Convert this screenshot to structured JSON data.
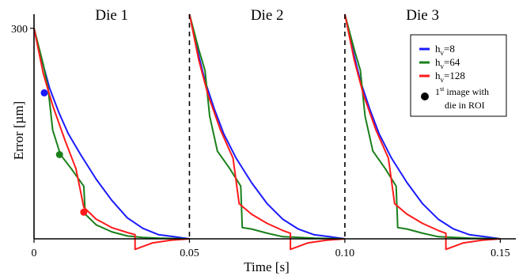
{
  "chart_data": {
    "type": "line",
    "xlabel": "Time [s]",
    "ylabel": "Error [µm]",
    "xlim": [
      0,
      0.155
    ],
    "ylim": [
      0,
      320
    ],
    "x_ticks": [
      {
        "value": 0,
        "label": "0"
      },
      {
        "value": 0.05,
        "label": "0.05"
      },
      {
        "value": 0.1,
        "label": "0.10"
      },
      {
        "value": 0.15,
        "label": "0.15"
      }
    ],
    "y_ticks": [
      {
        "value": 300,
        "label": "300"
      }
    ],
    "grid": false,
    "dividers": [
      0.05,
      0.1
    ],
    "panels": [
      {
        "label": "Die 1",
        "x": 0.025
      },
      {
        "label": "Die 2",
        "x": 0.075
      },
      {
        "label": "Die 3",
        "x": 0.125
      }
    ],
    "legend": {
      "placement": "top-right",
      "entries": [
        {
          "label_main": "h",
          "label_sub": "v",
          "label_rest": "=8",
          "color": "#1a1aff"
        },
        {
          "label_main": "h",
          "label_sub": "v",
          "label_rest": "=64",
          "color": "#1a801a"
        },
        {
          "label_main": "h",
          "label_sub": "v",
          "label_rest": "=128",
          "color": "#ff1a1a"
        }
      ],
      "marker_entry": {
        "sup_pre": "1",
        "sup": "st",
        "line1": " image with",
        "line2": "die in ROI"
      }
    },
    "series": [
      {
        "name": "hv=8",
        "color": "#1a1aff",
        "segments": [
          [
            [
              0,
              300
            ],
            [
              0.0025,
              255
            ],
            [
              0.005,
              215
            ],
            [
              0.008,
              180
            ],
            [
              0.011,
              150
            ],
            [
              0.015,
              120
            ],
            [
              0.02,
              85
            ],
            [
              0.025,
              55
            ],
            [
              0.03,
              30
            ],
            [
              0.035,
              15
            ],
            [
              0.04,
              6
            ],
            [
              0.045,
              3
            ],
            [
              0.05,
              0
            ]
          ],
          [
            [
              0.05,
              320
            ],
            [
              0.0525,
              270
            ],
            [
              0.055,
              225
            ],
            [
              0.058,
              185
            ],
            [
              0.061,
              150
            ],
            [
              0.065,
              115
            ],
            [
              0.07,
              80
            ],
            [
              0.075,
              50
            ],
            [
              0.08,
              28
            ],
            [
              0.085,
              14
            ],
            [
              0.09,
              6
            ],
            [
              0.095,
              3
            ],
            [
              0.1,
              0
            ]
          ],
          [
            [
              0.1,
              320
            ],
            [
              0.1025,
              270
            ],
            [
              0.105,
              225
            ],
            [
              0.108,
              185
            ],
            [
              0.111,
              150
            ],
            [
              0.115,
              115
            ],
            [
              0.12,
              80
            ],
            [
              0.125,
              50
            ],
            [
              0.13,
              28
            ],
            [
              0.135,
              14
            ],
            [
              0.14,
              6
            ],
            [
              0.145,
              3
            ],
            [
              0.15,
              0
            ]
          ]
        ],
        "marker": [
          0.0033,
          208
        ]
      },
      {
        "name": "hv=64",
        "color": "#1a801a",
        "segments": [
          [
            [
              0,
              300
            ],
            [
              0.003,
              248
            ],
            [
              0.0045,
              215
            ],
            [
              0.006,
              155
            ],
            [
              0.0085,
              120
            ],
            [
              0.012,
              100
            ],
            [
              0.016,
              75
            ],
            [
              0.0165,
              35
            ],
            [
              0.02,
              20
            ],
            [
              0.025,
              10
            ],
            [
              0.03,
              4
            ],
            [
              0.035,
              2
            ],
            [
              0.04,
              1
            ],
            [
              0.05,
              0
            ]
          ],
          [
            [
              0.05,
              320
            ],
            [
              0.053,
              270
            ],
            [
              0.055,
              240
            ],
            [
              0.0565,
              175
            ],
            [
              0.059,
              125
            ],
            [
              0.063,
              100
            ],
            [
              0.0665,
              75
            ],
            [
              0.067,
              16
            ],
            [
              0.07,
              14
            ],
            [
              0.075,
              8
            ],
            [
              0.08,
              3
            ],
            [
              0.09,
              1
            ],
            [
              0.1,
              0
            ]
          ],
          [
            [
              0.1,
              320
            ],
            [
              0.103,
              270
            ],
            [
              0.105,
              240
            ],
            [
              0.1065,
              175
            ],
            [
              0.109,
              125
            ],
            [
              0.113,
              100
            ],
            [
              0.1165,
              75
            ],
            [
              0.117,
              16
            ],
            [
              0.12,
              14
            ],
            [
              0.125,
              8
            ],
            [
              0.13,
              3
            ],
            [
              0.14,
              1
            ],
            [
              0.15,
              0
            ]
          ]
        ],
        "marker": [
          0.0082,
          120
        ]
      },
      {
        "name": "hv=128",
        "color": "#ff1a1a",
        "segments": [
          [
            [
              0,
              300
            ],
            [
              0.003,
              235
            ],
            [
              0.006,
              190
            ],
            [
              0.01,
              140
            ],
            [
              0.0135,
              100
            ],
            [
              0.016,
              45
            ],
            [
              0.02,
              28
            ],
            [
              0.025,
              16
            ],
            [
              0.03,
              9
            ],
            [
              0.0325,
              6
            ],
            [
              0.0325,
              -15
            ],
            [
              0.038,
              -6
            ],
            [
              0.044,
              -2
            ],
            [
              0.05,
              0
            ]
          ],
          [
            [
              0.05,
              320
            ],
            [
              0.053,
              255
            ],
            [
              0.056,
              205
            ],
            [
              0.06,
              155
            ],
            [
              0.064,
              115
            ],
            [
              0.066,
              50
            ],
            [
              0.07,
              35
            ],
            [
              0.075,
              22
            ],
            [
              0.08,
              12
            ],
            [
              0.0825,
              8
            ],
            [
              0.0825,
              -15
            ],
            [
              0.088,
              -6
            ],
            [
              0.094,
              -2
            ],
            [
              0.1,
              0
            ]
          ],
          [
            [
              0.1,
              320
            ],
            [
              0.103,
              255
            ],
            [
              0.106,
              205
            ],
            [
              0.11,
              155
            ],
            [
              0.114,
              115
            ],
            [
              0.116,
              50
            ],
            [
              0.12,
              35
            ],
            [
              0.125,
              22
            ],
            [
              0.13,
              12
            ],
            [
              0.1325,
              8
            ],
            [
              0.1325,
              -15
            ],
            [
              0.138,
              -6
            ],
            [
              0.144,
              -2
            ],
            [
              0.15,
              0
            ]
          ]
        ],
        "marker": [
          0.016,
          38
        ]
      }
    ]
  }
}
